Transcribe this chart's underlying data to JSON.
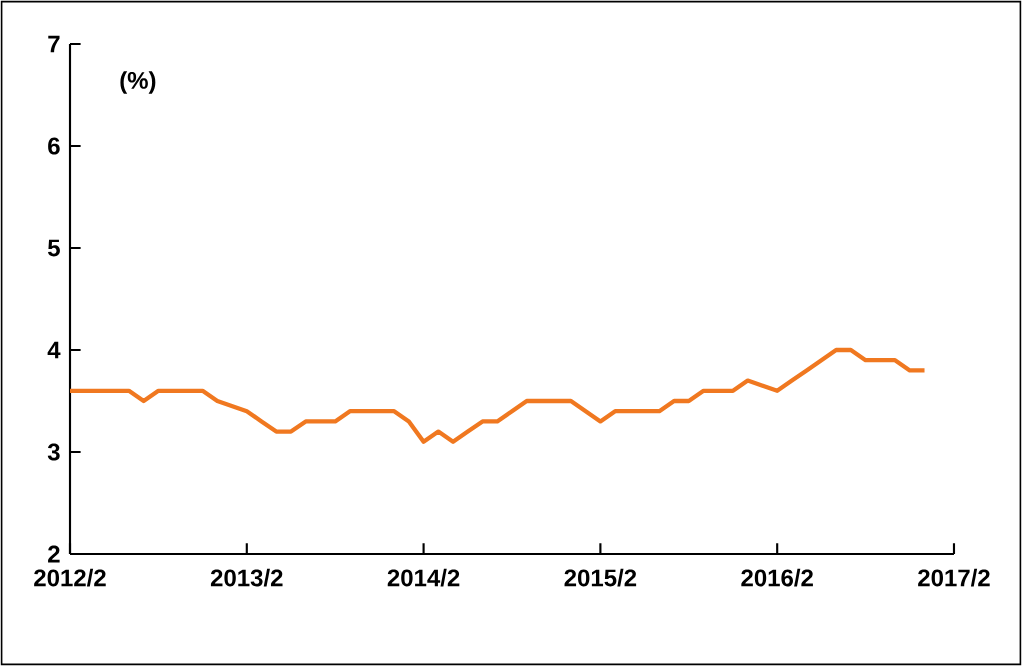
{
  "chart_data": {
    "type": "line",
    "ylabel": "(%)",
    "x": [
      "2012-02",
      "2012-03",
      "2012-04",
      "2012-05",
      "2012-06",
      "2012-07",
      "2012-08",
      "2012-09",
      "2012-10",
      "2012-11",
      "2012-12",
      "2013-01",
      "2013-02",
      "2013-03",
      "2013-04",
      "2013-05",
      "2013-06",
      "2013-07",
      "2013-08",
      "2013-09",
      "2013-10",
      "2013-11",
      "2013-12",
      "2014-01",
      "2014-02",
      "2014-03",
      "2014-04",
      "2014-05",
      "2014-06",
      "2014-07",
      "2014-08",
      "2014-09",
      "2014-10",
      "2014-11",
      "2014-12",
      "2015-01",
      "2015-02",
      "2015-03",
      "2015-04",
      "2015-05",
      "2015-06",
      "2015-07",
      "2015-08",
      "2015-09",
      "2015-10",
      "2015-11",
      "2015-12",
      "2016-01",
      "2016-02",
      "2016-03",
      "2016-04",
      "2016-05",
      "2016-06",
      "2016-07",
      "2016-08",
      "2016-09",
      "2016-10",
      "2016-11",
      "2016-12"
    ],
    "series": [
      {
        "color": "#f07820",
        "values": [
          3.6,
          3.6,
          3.6,
          3.6,
          3.6,
          3.5,
          3.6,
          3.6,
          3.6,
          3.6,
          3.5,
          3.45,
          3.4,
          3.3,
          3.2,
          3.2,
          3.3,
          3.3,
          3.3,
          3.4,
          3.4,
          3.4,
          3.4,
          3.3,
          3.1,
          3.2,
          3.1,
          3.2,
          3.3,
          3.3,
          3.4,
          3.5,
          3.5,
          3.5,
          3.5,
          3.4,
          3.3,
          3.4,
          3.4,
          3.4,
          3.4,
          3.5,
          3.5,
          3.6,
          3.6,
          3.6,
          3.7,
          3.65,
          3.6,
          3.7,
          3.8,
          3.9,
          4.0,
          4.0,
          3.9,
          3.9,
          3.9,
          3.8,
          3.8
        ]
      }
    ],
    "xlim": [
      "2012-02",
      "2017-02"
    ],
    "ylim": [
      2,
      7
    ],
    "xticks": [
      {
        "value": "2012-02",
        "label": "2012/2"
      },
      {
        "value": "2013-02",
        "label": "2013/2"
      },
      {
        "value": "2014-02",
        "label": "2014/2"
      },
      {
        "value": "2015-02",
        "label": "2015/2"
      },
      {
        "value": "2016-02",
        "label": "2016/2"
      },
      {
        "value": "2017-02",
        "label": "2017/2"
      }
    ],
    "yticks": [
      2,
      3,
      4,
      5,
      6,
      7
    ],
    "grid": false,
    "marker": "none",
    "line_style": "solid"
  }
}
